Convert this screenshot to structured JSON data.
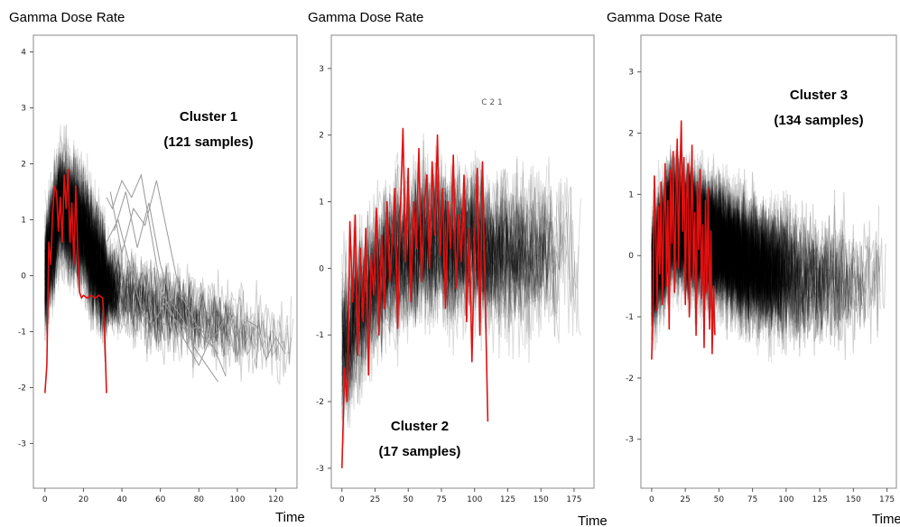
{
  "chart_data": [
    {
      "type": "line",
      "ylabel": "Gamma Dose Rate",
      "xlabel": "Time",
      "cluster_title": "Cluster 1",
      "cluster_subtitle": "(121 samples)",
      "faint_label": "",
      "xlim": [
        -6,
        131
      ],
      "ylim": [
        -3.8,
        4.3
      ],
      "xticks": [
        0,
        20,
        40,
        60,
        80,
        100,
        120
      ],
      "yticks": [
        -3,
        -2,
        -1,
        0,
        1,
        2,
        3,
        4
      ],
      "background_series_count": 121,
      "background_profile": [
        [
          0,
          0
        ],
        [
          8,
          1.3
        ],
        [
          20,
          0.8
        ],
        [
          32,
          -0.2
        ],
        [
          45,
          -0.4
        ],
        [
          125,
          -1.2
        ]
      ],
      "highlight_color": "#e01010",
      "highlight_series": [
        [
          0,
          -2.1
        ],
        [
          1,
          -1.6
        ],
        [
          2,
          0.6
        ],
        [
          3,
          0.2
        ],
        [
          4,
          1.1
        ],
        [
          5,
          1.6
        ],
        [
          6,
          1.5
        ],
        [
          7,
          0.8
        ],
        [
          8,
          1.4
        ],
        [
          9,
          0.6
        ],
        [
          10,
          1.8
        ],
        [
          11,
          1.2
        ],
        [
          12,
          1.9
        ],
        [
          13,
          0.6
        ],
        [
          14,
          1.3
        ],
        [
          15,
          0.2
        ],
        [
          16,
          1.6
        ],
        [
          17,
          0.5
        ],
        [
          18,
          -0.3
        ],
        [
          19,
          -0.4
        ],
        [
          20,
          -0.35
        ],
        [
          22,
          -0.4
        ],
        [
          24,
          -0.35
        ],
        [
          26,
          -0.4
        ],
        [
          28,
          -0.35
        ],
        [
          30,
          -0.4
        ],
        [
          31,
          -1.0
        ],
        [
          32,
          -2.1
        ]
      ],
      "outlier_series": [
        [
          [
            32,
            1.4
          ],
          [
            35,
            1.2
          ],
          [
            40,
            1.7
          ],
          [
            45,
            1.4
          ],
          [
            50,
            1.8
          ],
          [
            55,
            0.8
          ],
          [
            60,
            -0.2
          ],
          [
            65,
            -0.6
          ],
          [
            70,
            -1.0
          ],
          [
            75,
            -1.3
          ],
          [
            80,
            -1.6
          ],
          [
            85,
            -1.2
          ],
          [
            90,
            -1.0
          ],
          [
            95,
            -0.6
          ],
          [
            100,
            -1.0
          ],
          [
            105,
            -0.8
          ],
          [
            110,
            -0.9
          ],
          [
            115,
            -1.5
          ],
          [
            120,
            -1.1
          ],
          [
            125,
            -1.4
          ]
        ],
        [
          [
            32,
            0.6
          ],
          [
            38,
            1.0
          ],
          [
            44,
            0.2
          ],
          [
            50,
            -0.6
          ],
          [
            56,
            -0.9
          ],
          [
            62,
            -0.5
          ],
          [
            68,
            -0.8
          ],
          [
            74,
            -1.0
          ],
          [
            80,
            -0.9
          ],
          [
            86,
            -1.2
          ],
          [
            90,
            -1.4
          ]
        ],
        [
          [
            34,
            1.5
          ],
          [
            40,
            0.4
          ],
          [
            46,
            1.2
          ],
          [
            52,
            0.9
          ],
          [
            58,
            1.7
          ],
          [
            64,
            0.7
          ],
          [
            70,
            -0.3
          ],
          [
            76,
            -0.7
          ],
          [
            82,
            -1.1
          ],
          [
            88,
            -1.3
          ],
          [
            94,
            -1.8
          ]
        ],
        [
          [
            36,
            0.8
          ],
          [
            42,
            1.5
          ],
          [
            48,
            0.5
          ],
          [
            54,
            1.3
          ],
          [
            60,
            0.2
          ],
          [
            66,
            -0.5
          ],
          [
            72,
            -0.8
          ],
          [
            78,
            -1.3
          ],
          [
            84,
            -1.6
          ],
          [
            90,
            -1.9
          ]
        ]
      ]
    },
    {
      "type": "line",
      "ylabel": "Gamma Dose Rate",
      "xlabel": "Time",
      "cluster_title": "Cluster 2",
      "cluster_subtitle": "(17 samples)",
      "faint_label": "C 2 1",
      "xlim": [
        -8,
        190
      ],
      "ylim": [
        -3.3,
        3.5
      ],
      "xticks": [
        0,
        25,
        50,
        75,
        100,
        125,
        150,
        175
      ],
      "yticks": [
        -3,
        -2,
        -1,
        0,
        1,
        2,
        3
      ],
      "background_series_count": 17,
      "background_profile": [
        [
          0,
          -1.2
        ],
        [
          30,
          0.0
        ],
        [
          60,
          0.4
        ],
        [
          100,
          0.3
        ],
        [
          180,
          0.1
        ]
      ],
      "highlight_color": "#e01010",
      "highlight_series": [
        [
          0,
          -3.0
        ],
        [
          2,
          -1.5
        ],
        [
          4,
          -2.0
        ],
        [
          6,
          0.7
        ],
        [
          8,
          -0.5
        ],
        [
          10,
          0.8
        ],
        [
          12,
          -1.3
        ],
        [
          14,
          0.3
        ],
        [
          16,
          -0.8
        ],
        [
          18,
          0.6
        ],
        [
          20,
          -1.6
        ],
        [
          22,
          0.2
        ],
        [
          24,
          -0.4
        ],
        [
          26,
          0.9
        ],
        [
          28,
          -1.0
        ],
        [
          30,
          0.5
        ],
        [
          32,
          -0.6
        ],
        [
          34,
          1.0
        ],
        [
          36,
          -0.2
        ],
        [
          38,
          0.4
        ],
        [
          40,
          1.2
        ],
        [
          42,
          -0.9
        ],
        [
          44,
          0.8
        ],
        [
          46,
          2.1
        ],
        [
          48,
          0.1
        ],
        [
          50,
          1.5
        ],
        [
          52,
          -0.5
        ],
        [
          54,
          1.0
        ],
        [
          56,
          0.3
        ],
        [
          58,
          1.8
        ],
        [
          60,
          -0.2
        ],
        [
          62,
          0.9
        ],
        [
          64,
          1.4
        ],
        [
          66,
          0.0
        ],
        [
          68,
          1.6
        ],
        [
          70,
          0.5
        ],
        [
          72,
          2.0
        ],
        [
          74,
          0.2
        ],
        [
          76,
          1.2
        ],
        [
          78,
          -0.6
        ],
        [
          80,
          1.0
        ],
        [
          82,
          0.3
        ],
        [
          84,
          1.7
        ],
        [
          86,
          -0.3
        ],
        [
          88,
          0.8
        ],
        [
          90,
          0.1
        ],
        [
          92,
          1.4
        ],
        [
          94,
          -0.8
        ],
        [
          96,
          0.6
        ],
        [
          98,
          -1.4
        ],
        [
          100,
          0.4
        ],
        [
          102,
          1.5
        ],
        [
          104,
          -1.0
        ],
        [
          106,
          1.6
        ],
        [
          108,
          -0.4
        ],
        [
          110,
          -2.3
        ]
      ],
      "outlier_series": []
    },
    {
      "type": "line",
      "ylabel": "Gamma Dose Rate",
      "xlabel": "Time",
      "cluster_title": "Cluster 3",
      "cluster_subtitle": "(134 samples)",
      "faint_label": "",
      "xlim": [
        -8,
        182
      ],
      "ylim": [
        -3.8,
        3.6
      ],
      "xticks": [
        0,
        25,
        50,
        75,
        100,
        125,
        150,
        175
      ],
      "yticks": [
        -3,
        -2,
        -1,
        0,
        1,
        2,
        3
      ],
      "background_series_count": 134,
      "background_profile": [
        [
          0,
          -0.3
        ],
        [
          15,
          0.6
        ],
        [
          40,
          0.3
        ],
        [
          80,
          -0.2
        ],
        [
          120,
          -0.4
        ],
        [
          172,
          -0.5
        ]
      ],
      "highlight_color": "#e01010",
      "highlight_series": [
        [
          0,
          -1.7
        ],
        [
          1,
          -0.8
        ],
        [
          2,
          1.3
        ],
        [
          3,
          0.5
        ],
        [
          4,
          -0.9
        ],
        [
          5,
          0.8
        ],
        [
          6,
          -0.3
        ],
        [
          7,
          1.2
        ],
        [
          8,
          -0.8
        ],
        [
          9,
          0.6
        ],
        [
          10,
          1.5
        ],
        [
          11,
          -0.5
        ],
        [
          12,
          0.9
        ],
        [
          13,
          -1.2
        ],
        [
          14,
          1.4
        ],
        [
          15,
          0.2
        ],
        [
          16,
          1.7
        ],
        [
          17,
          -0.6
        ],
        [
          18,
          0.8
        ],
        [
          19,
          1.9
        ],
        [
          20,
          -0.2
        ],
        [
          21,
          1.3
        ],
        [
          22,
          2.2
        ],
        [
          23,
          0.4
        ],
        [
          24,
          1.6
        ],
        [
          25,
          -0.8
        ],
        [
          26,
          0.9
        ],
        [
          27,
          1.5
        ],
        [
          28,
          -1.0
        ],
        [
          29,
          0.6
        ],
        [
          30,
          1.8
        ],
        [
          31,
          -0.4
        ],
        [
          32,
          0.7
        ],
        [
          33,
          -1.3
        ],
        [
          34,
          1.2
        ],
        [
          35,
          0.1
        ],
        [
          36,
          1.4
        ],
        [
          37,
          -0.7
        ],
        [
          38,
          0.5
        ],
        [
          39,
          -1.5
        ],
        [
          40,
          0.9
        ],
        [
          41,
          -0.6
        ],
        [
          42,
          1.1
        ],
        [
          43,
          -1.2
        ],
        [
          44,
          0.4
        ],
        [
          45,
          -1.6
        ],
        [
          46,
          -0.5
        ],
        [
          47,
          -1.3
        ]
      ],
      "outlier_series": []
    }
  ]
}
